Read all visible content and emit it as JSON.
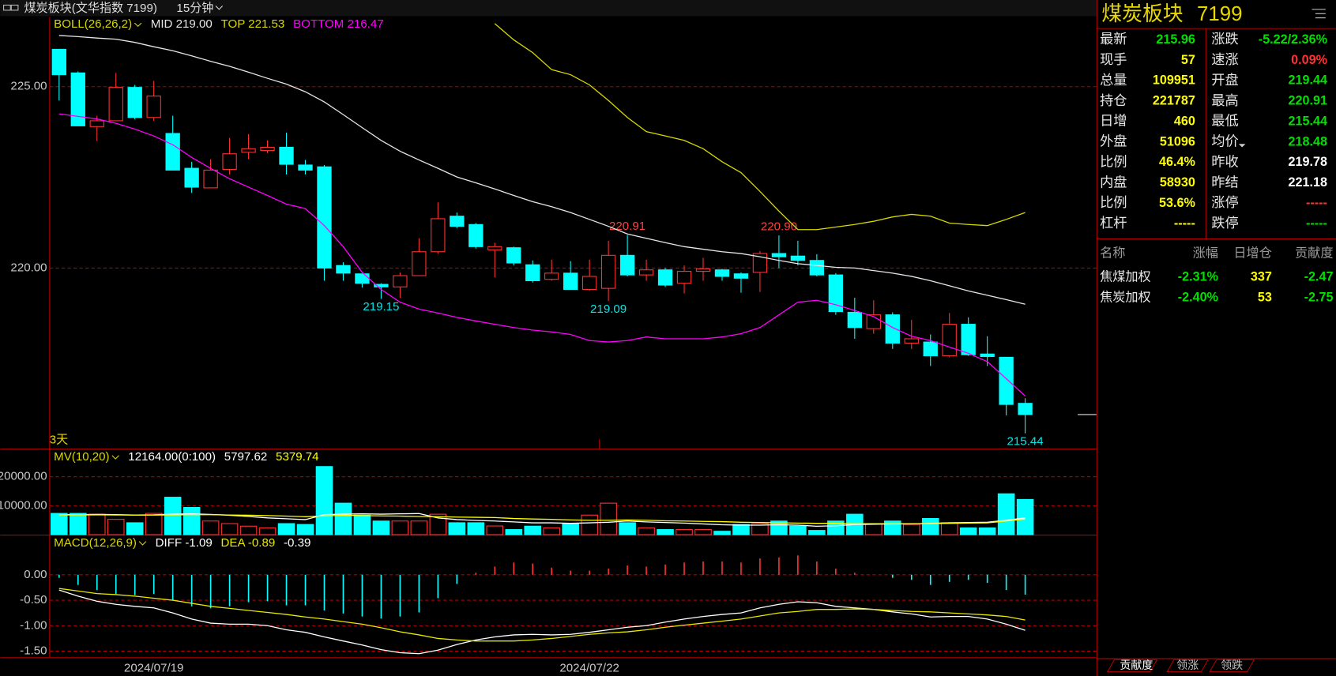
{
  "header": {
    "title": "煤炭板块(文华指数 7199)",
    "period": "15分钟"
  },
  "chart_data": [
    {
      "type": "candlestick",
      "indicator": "BOLL(26,26,2)",
      "range_label": "3天",
      "up_color": "#ff3232",
      "down_color": "#00ffff",
      "high_label_color": "#ff4040",
      "low_label_color": "#00e8e8",
      "categories": [
        null,
        null,
        null,
        null,
        null,
        "2024/07/19",
        null,
        null,
        null,
        null,
        null,
        null,
        null,
        null,
        null,
        null,
        null,
        null,
        null,
        null,
        null,
        null,
        null,
        null,
        null,
        null,
        null,
        null,
        "2024/07/22",
        null,
        null,
        null,
        null,
        null,
        null,
        null,
        null,
        null,
        null,
        null,
        null,
        null,
        null,
        null,
        null,
        null,
        null,
        null,
        null,
        null,
        null,
        null
      ],
      "open": [
        226.03,
        225.38,
        223.9,
        224.06,
        224.98,
        224.15,
        223.71,
        222.75,
        222.21,
        222.72,
        223.19,
        223.24,
        223.33,
        222.84,
        222.79,
        220.07,
        219.84,
        219.55,
        219.48,
        219.79,
        220.45,
        221.43,
        221.2,
        220.5,
        220.56,
        220.09,
        219.69,
        219.86,
        219.41,
        219.44,
        220.35,
        219.81,
        219.95,
        219.58,
        219.91,
        219.95,
        219.84,
        219.88,
        220.4,
        220.33,
        220.21,
        219.81,
        218.78,
        218.33,
        218.71,
        217.93,
        217.96,
        217.58,
        218.45,
        217.63,
        217.54,
        216.27
      ],
      "high": [
        226.03,
        225.42,
        224.2,
        225.38,
        225.05,
        225.16,
        224.2,
        222.93,
        223.0,
        223.59,
        223.69,
        223.52,
        223.73,
        222.98,
        222.84,
        220.16,
        219.84,
        219.58,
        219.88,
        220.82,
        221.81,
        221.53,
        221.24,
        220.7,
        220.59,
        220.21,
        220.23,
        220.19,
        220.23,
        220.75,
        220.91,
        220.23,
        220.0,
        220.07,
        220.28,
        219.98,
        219.88,
        220.47,
        220.9,
        220.75,
        220.38,
        219.86,
        219.18,
        219.11,
        218.78,
        218.57,
        218.17,
        218.76,
        218.64,
        218.12,
        217.54,
        216.41
      ],
      "low": [
        224.62,
        223.92,
        223.5,
        224.06,
        224.1,
        224.06,
        222.7,
        222.07,
        222.2,
        222.58,
        223.0,
        223.17,
        222.58,
        222.58,
        219.65,
        219.65,
        219.46,
        219.15,
        219.18,
        219.79,
        220.4,
        221.1,
        220.54,
        219.74,
        220.07,
        219.6,
        219.65,
        219.41,
        219.37,
        219.09,
        219.77,
        219.65,
        219.48,
        219.3,
        219.65,
        219.65,
        219.32,
        219.34,
        220.0,
        220.07,
        219.77,
        218.71,
        218.05,
        218.19,
        217.77,
        217.77,
        217.3,
        217.54,
        217.58,
        217.3,
        215.94,
        215.44
      ],
      "close": [
        225.33,
        223.92,
        224.06,
        224.98,
        224.15,
        224.74,
        222.7,
        222.23,
        222.7,
        223.15,
        223.29,
        223.33,
        222.86,
        222.7,
        220.0,
        219.86,
        219.58,
        219.48,
        219.79,
        220.45,
        221.36,
        221.15,
        220.59,
        220.59,
        220.14,
        219.65,
        219.86,
        219.41,
        219.77,
        220.35,
        219.81,
        219.95,
        219.53,
        219.91,
        219.98,
        219.77,
        219.72,
        220.4,
        220.31,
        220.21,
        219.81,
        218.8,
        218.36,
        218.71,
        217.93,
        218.05,
        217.58,
        218.45,
        217.61,
        217.56,
        216.24,
        215.96
      ],
      "high_labels": [
        null,
        null,
        null,
        null,
        null,
        null,
        null,
        null,
        null,
        null,
        null,
        null,
        null,
        null,
        null,
        null,
        null,
        null,
        null,
        null,
        null,
        null,
        null,
        null,
        null,
        null,
        null,
        null,
        null,
        null,
        "220.91",
        null,
        null,
        null,
        null,
        null,
        null,
        null,
        "220.90",
        null,
        null,
        null,
        null,
        null,
        null,
        null,
        null,
        null,
        null,
        null,
        null,
        null
      ],
      "low_labels": [
        null,
        null,
        null,
        null,
        null,
        null,
        null,
        null,
        null,
        null,
        null,
        null,
        null,
        null,
        null,
        null,
        null,
        "219.15",
        null,
        null,
        null,
        null,
        null,
        null,
        null,
        null,
        null,
        null,
        null,
        "219.09",
        null,
        null,
        null,
        null,
        null,
        null,
        null,
        null,
        null,
        null,
        null,
        null,
        null,
        null,
        null,
        null,
        null,
        null,
        null,
        null,
        null,
        "215.44"
      ],
      "series": [
        {
          "name": "MID 219.00",
          "color": "#e6e6e6",
          "values": [
            226.41,
            226.38,
            226.34,
            226.31,
            226.22,
            226.1,
            225.99,
            225.85,
            225.7,
            225.56,
            225.4,
            225.23,
            225.07,
            224.86,
            224.58,
            224.23,
            223.87,
            223.52,
            223.22,
            222.98,
            222.75,
            222.51,
            222.35,
            222.18,
            222.0,
            221.83,
            221.69,
            221.53,
            221.34,
            221.15,
            220.94,
            220.82,
            220.7,
            220.59,
            220.52,
            220.45,
            220.4,
            220.31,
            220.21,
            220.12,
            220.07,
            220.02,
            220.0,
            219.93,
            219.86,
            219.77,
            219.65,
            219.51,
            219.37,
            219.25,
            219.13,
            219.0
          ]
        },
        {
          "name": "TOP 221.53",
          "color": "#d8d800",
          "values": [
            null,
            null,
            null,
            null,
            null,
            null,
            null,
            null,
            null,
            null,
            null,
            null,
            null,
            null,
            null,
            null,
            null,
            null,
            null,
            null,
            null,
            null,
            null,
            226.74,
            226.29,
            225.94,
            225.47,
            225.33,
            225.05,
            224.62,
            224.15,
            223.76,
            223.64,
            223.52,
            223.29,
            222.93,
            222.63,
            222.11,
            221.57,
            221.06,
            221.06,
            221.13,
            221.2,
            221.29,
            221.41,
            221.48,
            221.43,
            221.24,
            221.2,
            221.17,
            221.34,
            221.53
          ]
        },
        {
          "name": "BOTTOM 216.47",
          "color": "#ff00ff",
          "values": [
            224.25,
            224.18,
            224.11,
            223.99,
            223.83,
            223.64,
            223.4,
            223.05,
            222.75,
            222.46,
            222.23,
            222.0,
            221.76,
            221.64,
            221.17,
            220.59,
            219.88,
            219.41,
            219.06,
            218.87,
            218.76,
            218.64,
            218.54,
            218.45,
            218.36,
            218.29,
            218.24,
            218.17,
            218.0,
            217.96,
            218.0,
            218.1,
            218.05,
            218.05,
            218.05,
            218.1,
            218.19,
            218.36,
            218.71,
            219.06,
            219.11,
            218.99,
            218.83,
            218.66,
            218.36,
            218.12,
            218.0,
            217.82,
            217.65,
            217.42,
            216.95,
            216.47
          ]
        }
      ],
      "ylim": [
        215.02,
        226.92
      ],
      "yticks": [
        {
          "value": 225,
          "label": "225.00"
        },
        {
          "value": 220,
          "label": "220.00"
        }
      ],
      "grid": true
    },
    {
      "type": "bar",
      "indicator": "MV(10,20)",
      "current_label": "12164.00(0:100)",
      "current_color": "#ffffff",
      "up_color": "#ff3232",
      "down_color": "#00ffff",
      "values": [
        7350,
        7350,
        7060,
        5300,
        4120,
        7350,
        12940,
        9410,
        4710,
        3820,
        2940,
        2350,
        3820,
        3530,
        23530,
        10880,
        6760,
        4710,
        4710,
        4710,
        7060,
        4120,
        4120,
        3000,
        1760,
        2940,
        2350,
        3820,
        6760,
        10880,
        4120,
        2350,
        1760,
        1760,
        1760,
        1180,
        3530,
        3820,
        4710,
        2940,
        1470,
        4710,
        7060,
        3820,
        4710,
        3530,
        5590,
        4120,
        2350,
        2350,
        14120,
        12164
      ],
      "series": [
        {
          "name": "5797.62",
          "color": "#ffffff",
          "values": [
            6900,
            6950,
            7000,
            6900,
            6800,
            6850,
            7100,
            7200,
            7000,
            6700,
            6300,
            5800,
            5500,
            5200,
            6900,
            7100,
            7200,
            7100,
            7200,
            7300,
            5800,
            5200,
            4900,
            4700,
            4400,
            4100,
            4100,
            3900,
            4100,
            4300,
            4700,
            4400,
            4200,
            4000,
            3700,
            3400,
            3300,
            3300,
            3400,
            3300,
            2900,
            3100,
            3500,
            3600,
            3700,
            3700,
            3900,
            4100,
            4200,
            4300,
            5000,
            5797.62
          ]
        },
        {
          "name": "5379.74",
          "color": "#ffff00",
          "values": [
            6800,
            6800,
            6850,
            6800,
            6750,
            6750,
            6800,
            6900,
            6900,
            6800,
            6700,
            6600,
            6400,
            6200,
            6500,
            6700,
            6600,
            6500,
            6400,
            6300,
            6200,
            6100,
            6000,
            5900,
            5600,
            5400,
            5300,
            5100,
            5000,
            5000,
            5100,
            5000,
            4800,
            4700,
            4600,
            4500,
            4300,
            4200,
            4100,
            4000,
            3900,
            3900,
            3800,
            3800,
            3800,
            3800,
            3800,
            3900,
            4000,
            4100,
            4700,
            5379.74
          ]
        }
      ],
      "ylim": [
        0,
        29400
      ],
      "yticks": [
        {
          "value": 10000,
          "label": "10000.00"
        },
        {
          "value": 20000,
          "label": "20000.00"
        }
      ],
      "grid": true
    },
    {
      "type": "macd",
      "indicator": "MACD(12,26,9)",
      "current_label": "-0.39",
      "current_color": "#ffffff",
      "up_color": "#ff3232",
      "down_color": "#00ffff",
      "values": [
        -0.06,
        -0.2,
        -0.3,
        -0.38,
        -0.4,
        -0.38,
        -0.5,
        -0.62,
        -0.66,
        -0.62,
        -0.54,
        -0.52,
        -0.6,
        -0.6,
        -0.7,
        -0.76,
        -0.82,
        -0.86,
        -0.82,
        -0.74,
        -0.46,
        -0.18,
        0.04,
        0.16,
        0.24,
        0.22,
        0.14,
        0.08,
        0.08,
        0.12,
        0.18,
        0.16,
        0.2,
        0.24,
        0.26,
        0.26,
        0.24,
        0.32,
        0.34,
        0.38,
        0.26,
        0.12,
        0.04,
        0.0,
        -0.06,
        -0.1,
        -0.2,
        -0.14,
        -0.1,
        -0.16,
        -0.3,
        -0.39
      ],
      "series": [
        {
          "name": "DIFF -1.09",
          "color": "#ffffff",
          "values": [
            -0.3,
            -0.42,
            -0.52,
            -0.58,
            -0.62,
            -0.65,
            -0.75,
            -0.87,
            -0.95,
            -0.97,
            -0.97,
            -1.0,
            -1.08,
            -1.13,
            -1.22,
            -1.3,
            -1.38,
            -1.47,
            -1.53,
            -1.55,
            -1.48,
            -1.37,
            -1.28,
            -1.22,
            -1.18,
            -1.17,
            -1.18,
            -1.17,
            -1.13,
            -1.08,
            -1.03,
            -1.0,
            -0.93,
            -0.87,
            -0.82,
            -0.78,
            -0.75,
            -0.65,
            -0.58,
            -0.53,
            -0.55,
            -0.62,
            -0.65,
            -0.68,
            -0.73,
            -0.77,
            -0.83,
            -0.82,
            -0.82,
            -0.87,
            -0.97,
            -1.09
          ]
        },
        {
          "name": "DEA -0.89",
          "color": "#e8e800",
          "values": [
            -0.27,
            -0.32,
            -0.37,
            -0.39,
            -0.42,
            -0.46,
            -0.5,
            -0.56,
            -0.62,
            -0.66,
            -0.7,
            -0.74,
            -0.78,
            -0.83,
            -0.87,
            -0.92,
            -0.97,
            -1.04,
            -1.12,
            -1.18,
            -1.25,
            -1.28,
            -1.3,
            -1.3,
            -1.3,
            -1.28,
            -1.25,
            -1.21,
            -1.17,
            -1.14,
            -1.12,
            -1.08,
            -1.03,
            -0.99,
            -0.95,
            -0.91,
            -0.87,
            -0.81,
            -0.75,
            -0.72,
            -0.68,
            -0.68,
            -0.67,
            -0.68,
            -0.7,
            -0.72,
            -0.73,
            -0.75,
            -0.77,
            -0.79,
            -0.82,
            -0.89
          ]
        }
      ],
      "ylim": [
        -1.62,
        0.77
      ],
      "yticks": [
        {
          "value": 0,
          "label": "0.00"
        },
        {
          "value": -0.5,
          "label": "-0.50"
        },
        {
          "value": -1,
          "label": "-1.00"
        },
        {
          "value": -1.5,
          "label": "-1.50"
        }
      ],
      "grid": true
    }
  ],
  "quote_panel": {
    "name": "煤炭板块",
    "code": "7199",
    "rows": [
      [
        {
          "label": "最新",
          "value": "215.96",
          "color": "#00e000"
        },
        {
          "label": "涨跌",
          "value": "-5.22/2.36%",
          "color": "#00e000"
        }
      ],
      [
        {
          "label": "现手",
          "value": "57",
          "color": "#ffff00"
        },
        {
          "label": "速涨",
          "value": "0.09%",
          "color": "#ff3232"
        }
      ],
      [
        {
          "label": "总量",
          "value": "109951",
          "color": "#ffff00"
        },
        {
          "label": "开盘",
          "value": "219.44",
          "color": "#00e000"
        }
      ],
      [
        {
          "label": "持仓",
          "value": "221787",
          "color": "#ffff00"
        },
        {
          "label": "最高",
          "value": "220.91",
          "color": "#00e000"
        }
      ],
      [
        {
          "label": "日增",
          "value": "460",
          "color": "#ffff00"
        },
        {
          "label": "最低",
          "value": "215.44",
          "color": "#00e000"
        }
      ],
      [
        {
          "label": "外盘",
          "value": "51096",
          "color": "#ffff00"
        },
        {
          "label": "均价",
          "value": "218.48",
          "color": "#00e000"
        }
      ],
      [
        {
          "label": "比例",
          "value": "46.4%",
          "color": "#ffff00"
        },
        {
          "label": "昨收",
          "value": "219.78",
          "color": "#ffffff"
        }
      ],
      [
        {
          "label": "内盘",
          "value": "58930",
          "color": "#ffff00"
        },
        {
          "label": "昨结",
          "value": "221.18",
          "color": "#ffffff"
        }
      ],
      [
        {
          "label": "比例",
          "value": "53.6%",
          "color": "#ffff00"
        },
        {
          "label": "涨停",
          "value": "-----",
          "color": "#ff3232"
        }
      ],
      [
        {
          "label": "杠杆",
          "value": "-----",
          "color": "#ffff00"
        },
        {
          "label": "跌停",
          "value": "-----",
          "color": "#00e000"
        }
      ]
    ]
  },
  "components": {
    "headers": [
      "名称",
      "涨幅",
      "日增仓",
      "贡献度"
    ],
    "column_colors": [
      "#e6e6e6",
      "#00e000",
      "#ffff00",
      "#00e000"
    ],
    "rows": [
      [
        "焦煤加权",
        "-2.31%",
        "337",
        "-2.47"
      ],
      [
        "焦炭加权",
        "-2.40%",
        "53",
        "-2.75"
      ]
    ]
  },
  "tabs": [
    "贡献度",
    "领涨",
    "领跌"
  ]
}
